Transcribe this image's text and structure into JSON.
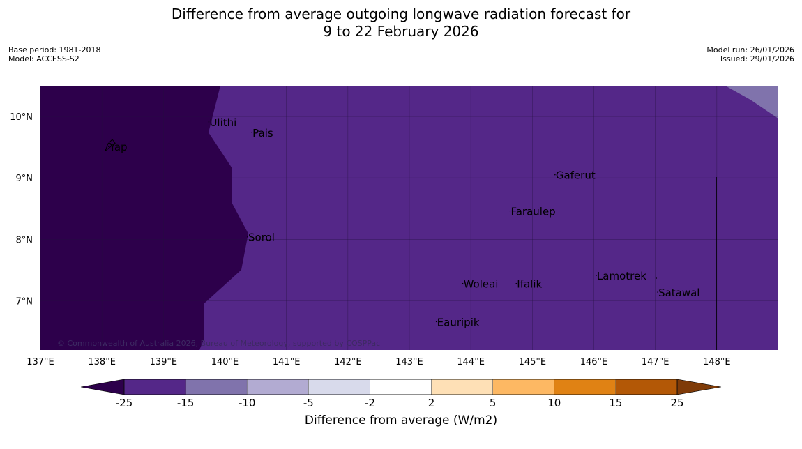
{
  "title": {
    "line1": "Difference from average outgoing longwave radiation forecast for",
    "line2": "9 to 22 February 2026"
  },
  "meta_left": {
    "base_period": "Base period: 1981-2018",
    "model": "Model: ACCESS-S2"
  },
  "meta_right": {
    "model_run": "Model run: 26/01/2026",
    "issued": "Issued: 29/01/2026"
  },
  "map": {
    "lon_range": [
      137,
      149
    ],
    "lat_range": [
      6.2,
      10.5
    ],
    "lon_ticks": [
      137,
      138,
      139,
      140,
      141,
      142,
      143,
      144,
      145,
      146,
      147,
      148
    ],
    "lon_labels": [
      "137°E",
      "138°E",
      "139°E",
      "140°E",
      "141°E",
      "142°E",
      "143°E",
      "144°E",
      "145°E",
      "146°E",
      "147°E",
      "148°E"
    ],
    "lat_ticks": [
      10,
      9,
      8,
      7
    ],
    "lat_labels": [
      "10°N",
      "9°N",
      "8°N",
      "7°N"
    ],
    "anomaly_region_colors": {
      "west_below_minus_25": "#2d004b",
      "main_minus_25_to_minus_15": "#542788",
      "northeast_minus_15_to_minus_10": "#8073ac"
    },
    "places": [
      {
        "name": "Ulithi",
        "lon": 139.75,
        "lat": 9.9
      },
      {
        "name": "Pais",
        "lon": 140.45,
        "lat": 9.73
      },
      {
        "name": "Yap",
        "lon": 138.12,
        "lat": 9.5
      },
      {
        "name": "Gaferut",
        "lon": 145.38,
        "lat": 9.04
      },
      {
        "name": "Faraulep",
        "lon": 144.65,
        "lat": 8.45
      },
      {
        "name": "Sorol",
        "lon": 140.38,
        "lat": 8.03
      },
      {
        "name": "Lamotrek",
        "lon": 146.05,
        "lat": 7.4
      },
      {
        "name": "Woleai",
        "lon": 143.88,
        "lat": 7.27
      },
      {
        "name": "Ifalik",
        "lon": 144.75,
        "lat": 7.27
      },
      {
        "name": "Satawal",
        "lon": 147.05,
        "lat": 7.13
      },
      {
        "name": "Eauripik",
        "lon": 143.45,
        "lat": 6.65
      }
    ],
    "copyright": "© Commonwealth of Australia 2026, Bureau of Meteorology, supported by COSPPac"
  },
  "colorbar": {
    "title": "Difference from average (W/m2)",
    "ticks": [
      "-25",
      "-15",
      "-10",
      "-5",
      "-2",
      "2",
      "5",
      "10",
      "15",
      "25"
    ],
    "colors": [
      "#542788",
      "#8073ac",
      "#b2abd2",
      "#d8daeb",
      "#ffffff",
      "#fee0b6",
      "#fdb863",
      "#e08214",
      "#b35806"
    ],
    "under_color": "#2d004b",
    "over_color": "#7f3b08"
  }
}
